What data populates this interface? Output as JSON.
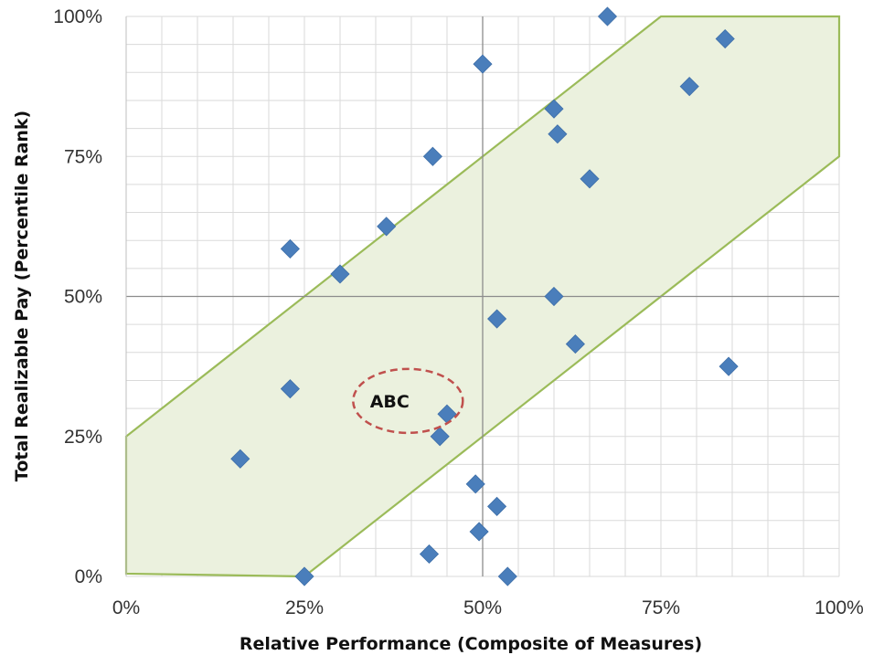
{
  "chart_data": {
    "type": "scatter",
    "xlabel": "Relative Performance (Composite of Measures)",
    "ylabel": "Total Realizable Pay (Percentile Rank)",
    "xlim": [
      0,
      100
    ],
    "ylim": [
      0,
      100
    ],
    "x_ticks": [
      0,
      25,
      50,
      75,
      100
    ],
    "y_ticks": [
      0,
      25,
      50,
      75,
      100
    ],
    "x_tick_labels": [
      "0%",
      "25%",
      "50%",
      "75%",
      "100%"
    ],
    "y_tick_labels": [
      "0%",
      "25%",
      "50%",
      "75%",
      "100%"
    ],
    "minor_grid_step": 5,
    "grid": true,
    "points": [
      {
        "x": 67.5,
        "y": 100
      },
      {
        "x": 84,
        "y": 96
      },
      {
        "x": 50,
        "y": 91.5
      },
      {
        "x": 79,
        "y": 87.5
      },
      {
        "x": 60,
        "y": 83.5
      },
      {
        "x": 60.5,
        "y": 79
      },
      {
        "x": 43,
        "y": 75
      },
      {
        "x": 65,
        "y": 71
      },
      {
        "x": 36.5,
        "y": 62.5
      },
      {
        "x": 23,
        "y": 58.5
      },
      {
        "x": 30,
        "y": 54
      },
      {
        "x": 60,
        "y": 50
      },
      {
        "x": 52,
        "y": 46
      },
      {
        "x": 63,
        "y": 41.5
      },
      {
        "x": 84.5,
        "y": 37.5
      },
      {
        "x": 23,
        "y": 33.5
      },
      {
        "x": 45,
        "y": 29
      },
      {
        "x": 44,
        "y": 25
      },
      {
        "x": 16,
        "y": 21
      },
      {
        "x": 49,
        "y": 16.5
      },
      {
        "x": 52,
        "y": 12.5
      },
      {
        "x": 49.5,
        "y": 8
      },
      {
        "x": 42.5,
        "y": 4
      },
      {
        "x": 25,
        "y": 0
      },
      {
        "x": 53.5,
        "y": 0
      }
    ],
    "band_polygon": [
      [
        0,
        0.5
      ],
      [
        25,
        0
      ],
      [
        100,
        75
      ],
      [
        100,
        100
      ],
      [
        75,
        100
      ],
      [
        0,
        25
      ]
    ],
    "annotation": {
      "text": "ABC",
      "x": 38.5,
      "y": 32
    },
    "colors": {
      "marker": "#4a7ebb",
      "band_fill": "#ebf1de",
      "band_stroke": "#9bbb59",
      "major_grid": "#8c8c8c",
      "minor_grid": "#dadada",
      "annotation_ring": "#c0504d"
    }
  }
}
